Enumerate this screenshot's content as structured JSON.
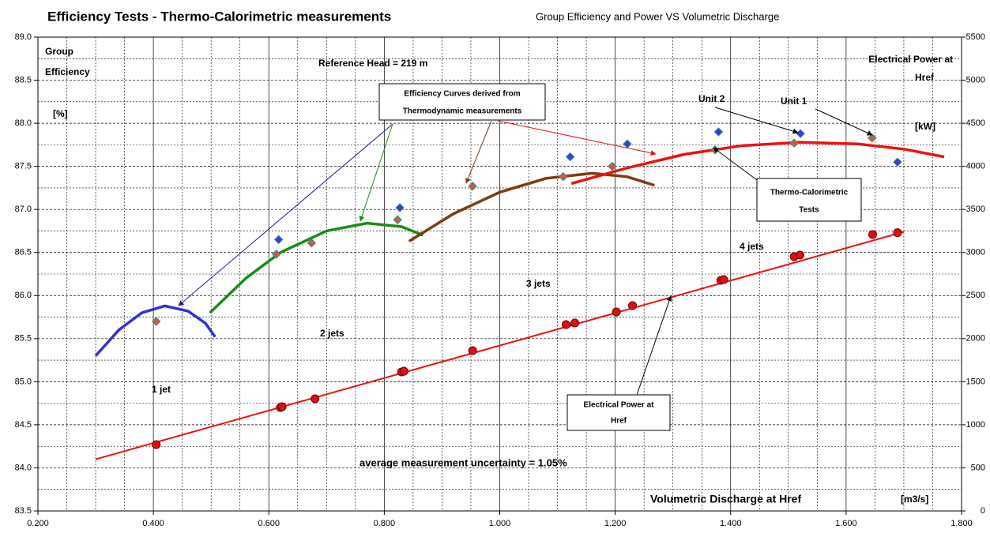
{
  "chart_data": {
    "type": "line",
    "title": "Efficiency Tests - Thermo-Calorimetric measurements",
    "subtitle": "Group Efficiency and Power VS Volumetric Discharge",
    "ylabel_lines": [
      "Group",
      "Efficiency"
    ],
    "yunit": "[%]",
    "y2label_lines": [
      "Electrical Power at",
      "Href"
    ],
    "y2unit": "[kW]",
    "xlabel": "Volumetric Discharge at Href",
    "xunit": "[m3/s]",
    "xlim": [
      0.2,
      1.8
    ],
    "ylim": [
      83.5,
      89.0
    ],
    "y2lim": [
      0,
      5500
    ],
    "xticks": [
      {
        "value": 0.2,
        "label": "0.200"
      },
      {
        "value": 0.4,
        "label": "0.400"
      },
      {
        "value": 0.6,
        "label": "0.600"
      },
      {
        "value": 0.8,
        "label": "0.800"
      },
      {
        "value": 1.0,
        "label": "1.000"
      },
      {
        "value": 1.2,
        "label": "1.200"
      },
      {
        "value": 1.4,
        "label": "1.400"
      },
      {
        "value": 1.6,
        "label": "1.600"
      },
      {
        "value": 1.8,
        "label": "1.800"
      }
    ],
    "yticks": [
      {
        "value": 83.5,
        "label": "83.5"
      },
      {
        "value": 84.0,
        "label": "84.0"
      },
      84.5,
      {
        "value": 85.0,
        "label": "85.0"
      },
      85.5,
      {
        "value": 86.0,
        "label": "86.0"
      },
      86.5,
      {
        "value": 87.0,
        "label": "87.0"
      },
      87.5,
      {
        "value": 88.0,
        "label": "88.0"
      },
      88.5,
      {
        "value": 89.0,
        "label": "89.0"
      }
    ],
    "y2ticks": [
      0,
      500,
      1000,
      1500,
      2000,
      2500,
      3000,
      3500,
      4000,
      4500,
      5000,
      5500
    ],
    "x_minor_ticks": [
      0.25,
      0.3,
      0.35,
      0.45,
      0.5,
      0.55,
      0.65,
      0.7,
      0.75,
      0.85,
      0.9,
      0.95,
      1.05,
      1.1,
      1.15,
      1.25,
      1.3,
      1.35,
      1.45,
      1.5,
      1.55,
      1.65,
      1.7,
      1.75
    ],
    "y_minor_ticks": [
      83.75,
      84.25,
      84.75,
      85.25,
      85.75,
      86.25,
      86.75,
      87.25,
      87.75,
      88.25,
      88.75
    ],
    "grid": true,
    "series": [
      {
        "type": "line",
        "color": "#3333cc",
        "x": [
          0.3,
          0.34,
          0.38,
          0.42,
          0.46,
          0.49,
          0.507
        ],
        "values": [
          85.3,
          85.6,
          85.8,
          85.88,
          85.82,
          85.68,
          85.52
        ]
      },
      {
        "type": "line",
        "color": "#1a8c1a",
        "x": [
          0.498,
          0.56,
          0.62,
          0.7,
          0.77,
          0.83,
          0.867
        ],
        "values": [
          85.8,
          86.2,
          86.5,
          86.75,
          86.84,
          86.8,
          86.7
        ]
      },
      {
        "type": "line",
        "color": "#7a3d12",
        "x": [
          0.843,
          0.92,
          1.0,
          1.08,
          1.16,
          1.22,
          1.268
        ],
        "values": [
          86.63,
          86.95,
          87.2,
          87.36,
          87.42,
          87.38,
          87.28
        ]
      },
      {
        "type": "line",
        "color": "#ee1111",
        "x": [
          1.124,
          1.22,
          1.32,
          1.42,
          1.52,
          1.62,
          1.7,
          1.77
        ],
        "values": [
          87.3,
          87.48,
          87.64,
          87.74,
          87.78,
          87.76,
          87.7,
          87.61
        ]
      },
      {
        "type": "scatter",
        "marker": "diamond",
        "color": "#3b3bdd",
        "x": [
          0.617,
          0.827,
          1.122,
          1.221,
          1.379,
          1.521,
          1.689
        ],
        "values": [
          86.65,
          87.02,
          87.61,
          87.76,
          87.9,
          87.88,
          87.55
        ]
      },
      {
        "type": "scatter",
        "marker": "diamond",
        "color": "#d9573b",
        "x": [
          0.405,
          0.613,
          0.674,
          0.823,
          0.953,
          1.11,
          1.195,
          1.373,
          1.51,
          1.645
        ],
        "values": [
          85.7,
          86.48,
          86.61,
          86.88,
          87.27,
          87.38,
          87.5,
          87.69,
          87.77,
          87.83
        ]
      },
      {
        "type": "line",
        "axis": "y2",
        "color": "#ee1111",
        "x": [
          0.3,
          1.7
        ],
        "values": [
          600,
          3240
        ]
      },
      {
        "type": "scatter",
        "marker": "circle",
        "axis": "y2",
        "color": "#e01010",
        "x": [
          0.405,
          0.62,
          0.623,
          0.68,
          0.83,
          0.834,
          0.953,
          1.115,
          1.13,
          1.202,
          1.23,
          1.383,
          1.388,
          1.51,
          1.52,
          1.646,
          1.689
        ],
        "values": [
          770,
          1201,
          1210,
          1302,
          1613,
          1622,
          1861,
          2163,
          2182,
          2310,
          2383,
          2677,
          2686,
          2952,
          2970,
          3208,
          3230
        ]
      }
    ],
    "annotations": [
      {
        "text": [
          "Reference  Head  = 219 m"
        ]
      },
      {
        "text": [
          "Efficiency Curves derived from",
          "Thermodynamic measurements"
        ]
      },
      {
        "text": [
          "Thermo-Calorimetric",
          "Tests"
        ]
      },
      {
        "text": [
          "Electrical Power at",
          "Href"
        ]
      },
      {
        "text": [
          "Unit 2"
        ]
      },
      {
        "text": [
          "Unit 1"
        ]
      },
      {
        "text": [
          "1 jet"
        ]
      },
      {
        "text": [
          "2 jets"
        ]
      },
      {
        "text": [
          "3 jets"
        ]
      },
      {
        "text": [
          "4 jets"
        ]
      },
      {
        "text": [
          "average measurement uncertainty = 1.05%"
        ]
      }
    ]
  }
}
